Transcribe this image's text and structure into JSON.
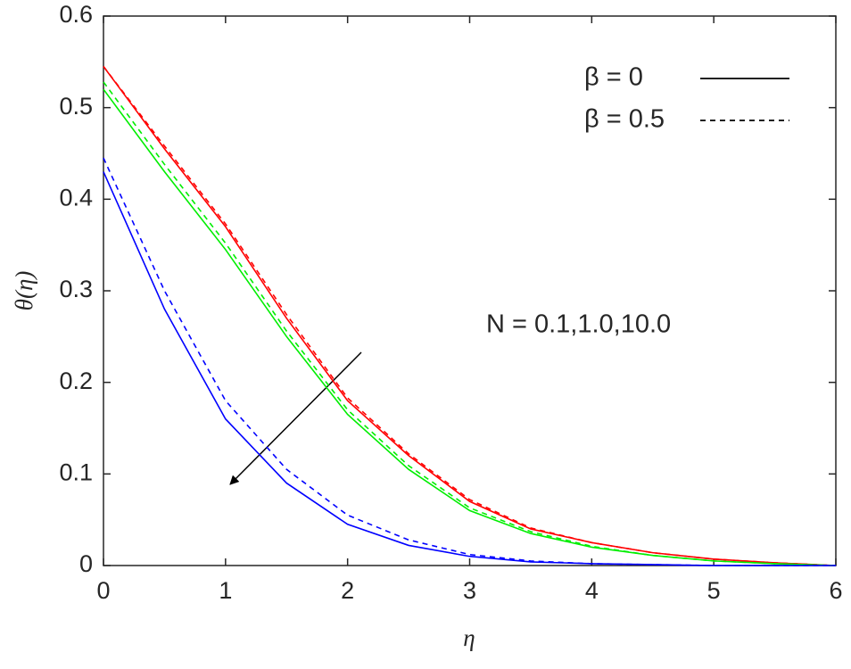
{
  "chart_data": {
    "type": "line",
    "x_label": "η",
    "y_label": "θ(η)",
    "annotation": "N = 0.1,1.0,10.0",
    "legend": [
      {
        "label": "β = 0",
        "dash": "solid"
      },
      {
        "label": "β = 0.5",
        "dash": "dashed"
      }
    ],
    "legend_position": "upper right",
    "x": [
      0,
      0.5,
      1,
      1.5,
      2,
      2.5,
      3,
      3.5,
      4,
      4.5,
      5,
      5.5,
      6
    ],
    "series": [
      {
        "color": "#ff0000",
        "dash": "solid",
        "values": [
          0.545,
          0.455,
          0.37,
          0.27,
          0.18,
          0.12,
          0.07,
          0.04,
          0.025,
          0.014,
          0.007,
          0.003,
          0
        ]
      },
      {
        "color": "#ff0000",
        "dash": "dashed",
        "values": [
          0.545,
          0.458,
          0.373,
          0.274,
          0.183,
          0.122,
          0.072,
          0.041,
          0.025,
          0.014,
          0.007,
          0.003,
          0
        ]
      },
      {
        "color": "#00ee00",
        "dash": "solid",
        "values": [
          0.52,
          0.43,
          0.345,
          0.25,
          0.165,
          0.105,
          0.06,
          0.035,
          0.02,
          0.011,
          0.005,
          0.002,
          0
        ]
      },
      {
        "color": "#00ee00",
        "dash": "dashed",
        "values": [
          0.528,
          0.438,
          0.352,
          0.256,
          0.17,
          0.109,
          0.063,
          0.037,
          0.021,
          0.011,
          0.005,
          0.002,
          0
        ]
      },
      {
        "color": "#0000ff",
        "dash": "solid",
        "values": [
          0.43,
          0.28,
          0.16,
          0.09,
          0.045,
          0.022,
          0.01,
          0.004,
          0.002,
          0.001,
          0,
          0,
          0
        ]
      },
      {
        "color": "#0000ff",
        "dash": "dashed",
        "values": [
          0.445,
          0.3,
          0.18,
          0.105,
          0.055,
          0.028,
          0.012,
          0.005,
          0.002,
          0.001,
          0,
          0,
          0
        ]
      }
    ],
    "xlim": [
      0,
      6
    ],
    "xticks": [
      0,
      1,
      2,
      3,
      4,
      5,
      6
    ],
    "ylim": [
      0,
      0.6
    ],
    "yticks": [
      0,
      0.1,
      0.2,
      0.3,
      0.4,
      0.5,
      0.6
    ],
    "grid": false
  }
}
